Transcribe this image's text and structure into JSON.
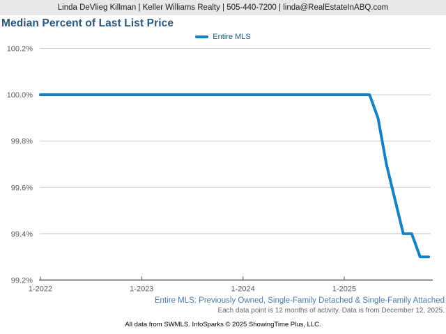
{
  "header": {
    "contact_line": "Linda DeVlieg Killman | Keller Williams Realty | 505-440-7200 | linda@RealEstateInABQ.com"
  },
  "chart": {
    "title": "Median Percent of Last List Price",
    "legend_label": "Entire MLS"
  },
  "footnotes": {
    "series_description": "Entire MLS: Previously Owned, Single-Family Detached & Single-Family Attached",
    "data_note": "Each data point is 12 months of activity. Data is from December 12, 2025.",
    "copyright": "All data from SWMLS. InfoSparks © 2025 ShowingTime Plus, LLC."
  },
  "colors": {
    "line": "#1580c2",
    "gridline": "#c9c9c9",
    "axis": "#7f7f7f",
    "tick_label": "#595959",
    "title": "#27567f",
    "legend_text": "#17567f",
    "footer_blue": "#4a7ab2",
    "footer_gray": "#666666",
    "header_bg": "#e8e8e8"
  },
  "chart_data": {
    "type": "line",
    "title": "Median Percent of Last List Price",
    "xlabel": "",
    "ylabel": "",
    "grid": true,
    "legend_position": "top-center",
    "ylim": [
      99.2,
      100.2
    ],
    "y_tick_labels": [
      "100.2%",
      "100.0%",
      "99.8%",
      "99.6%",
      "99.4%",
      "99.2%"
    ],
    "y_tick_values": [
      100.2,
      100.0,
      99.8,
      99.6,
      99.4,
      99.2
    ],
    "x_tick_labels": [
      "1-2022",
      "1-2023",
      "1-2024",
      "1-2025"
    ],
    "x_tick_month_index": [
      0,
      12,
      24,
      36
    ],
    "x_start": "2022-01",
    "x_interval": "month",
    "x_end": "2025-11",
    "series": [
      {
        "name": "Entire MLS",
        "values": [
          100,
          100,
          100,
          100,
          100,
          100,
          100,
          100,
          100,
          100,
          100,
          100,
          100,
          100,
          100,
          100,
          100,
          100,
          100,
          100,
          100,
          100,
          100,
          100,
          100,
          100,
          100,
          100,
          100,
          100,
          100,
          100,
          100,
          100,
          100,
          100,
          100,
          100,
          100,
          100,
          99.9,
          99.7,
          99.55,
          99.4,
          99.4,
          99.3,
          99.3
        ]
      }
    ]
  }
}
